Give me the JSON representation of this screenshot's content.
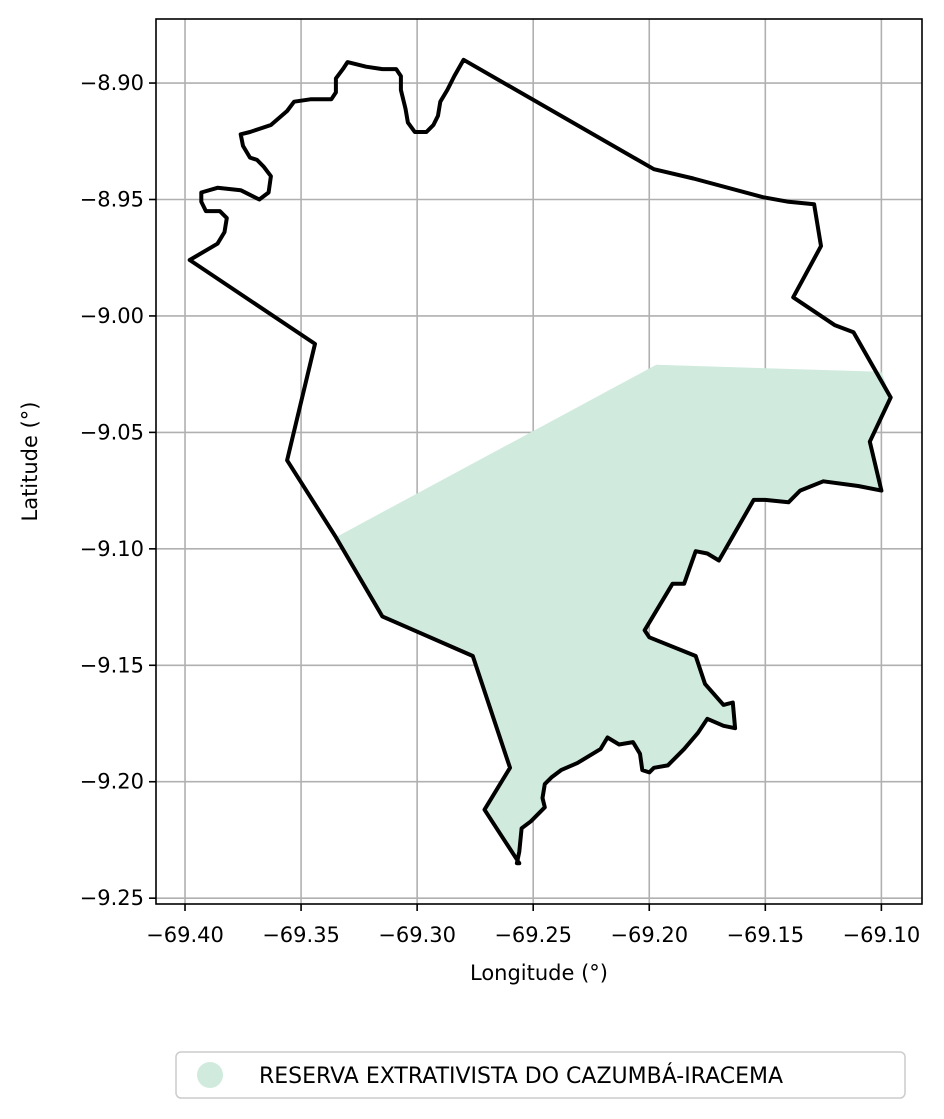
{
  "chart_data": {
    "type": "map",
    "xlabel": "Longitude (°)",
    "ylabel": "Latitude (°)",
    "xlim": [
      -69.4125,
      -69.0825
    ],
    "ylim": [
      -9.2525,
      -8.8725
    ],
    "x_ticks": [
      {
        "value": -69.4,
        "label": "−69.40"
      },
      {
        "value": -69.35,
        "label": "−69.35"
      },
      {
        "value": -69.3,
        "label": "−69.30"
      },
      {
        "value": -69.25,
        "label": "−69.25"
      },
      {
        "value": -69.2,
        "label": "−69.20"
      },
      {
        "value": -69.15,
        "label": "−69.15"
      },
      {
        "value": -69.1,
        "label": "−69.10"
      }
    ],
    "y_ticks": [
      {
        "value": -8.9,
        "label": "−8.90"
      },
      {
        "value": -8.95,
        "label": "−8.95"
      },
      {
        "value": -9.0,
        "label": "−9.00"
      },
      {
        "value": -9.05,
        "label": "−9.05"
      },
      {
        "value": -9.1,
        "label": "−9.10"
      },
      {
        "value": -9.15,
        "label": "−9.15"
      },
      {
        "value": -9.2,
        "label": "−9.20"
      },
      {
        "value": -9.25,
        "label": "−9.25"
      }
    ],
    "grid": true,
    "legend": {
      "placement": "bottom-center",
      "entries": [
        {
          "label": "RESERVA EXTRATIVISTA DO CAZUMBÁ-IRACEMA",
          "color": "#d0ebde",
          "marker": "circle"
        }
      ]
    },
    "fill_polygon": {
      "name": "RESERVA EXTRATIVISTA DO CAZUMBÁ-IRACEMA",
      "color": "#d0ebde",
      "coords": [
        [
          -69.335,
          -9.095
        ],
        [
          -69.197,
          -9.021
        ],
        [
          -69.1,
          -9.024
        ],
        [
          -69.096,
          -9.035
        ],
        [
          -69.105,
          -9.054
        ],
        [
          -69.1,
          -9.075
        ],
        [
          -69.11,
          -9.073
        ],
        [
          -69.125,
          -9.071
        ],
        [
          -69.135,
          -9.075
        ],
        [
          -69.14,
          -9.08
        ],
        [
          -69.15,
          -9.079
        ],
        [
          -69.155,
          -9.079
        ],
        [
          -69.17,
          -9.105
        ],
        [
          -69.175,
          -9.102
        ],
        [
          -69.18,
          -9.101
        ],
        [
          -69.185,
          -9.115
        ],
        [
          -69.19,
          -9.115
        ],
        [
          -69.202,
          -9.135
        ],
        [
          -69.2,
          -9.138
        ],
        [
          -69.18,
          -9.146
        ],
        [
          -69.176,
          -9.158
        ],
        [
          -69.168,
          -9.167
        ],
        [
          -69.164,
          -9.166
        ],
        [
          -69.163,
          -9.177
        ],
        [
          -69.168,
          -9.176
        ],
        [
          -69.175,
          -9.173
        ],
        [
          -69.179,
          -9.179
        ],
        [
          -69.185,
          -9.186
        ],
        [
          -69.192,
          -9.193
        ],
        [
          -69.198,
          -9.194
        ],
        [
          -69.2,
          -9.196
        ],
        [
          -69.203,
          -9.195
        ],
        [
          -69.204,
          -9.188
        ],
        [
          -69.207,
          -9.183
        ],
        [
          -69.213,
          -9.184
        ],
        [
          -69.218,
          -9.181
        ],
        [
          -69.221,
          -9.186
        ],
        [
          -69.231,
          -9.192
        ],
        [
          -69.238,
          -9.195
        ],
        [
          -69.242,
          -9.198
        ],
        [
          -69.245,
          -9.201
        ],
        [
          -69.246,
          -9.207
        ],
        [
          -69.245,
          -9.211
        ],
        [
          -69.251,
          -9.217
        ],
        [
          -69.255,
          -9.22
        ],
        [
          -69.256,
          -9.23
        ],
        [
          -69.257,
          -9.235
        ],
        [
          -69.256,
          -9.235
        ],
        [
          -69.271,
          -9.212
        ],
        [
          -69.26,
          -9.194
        ],
        [
          -69.276,
          -9.146
        ],
        [
          -69.315,
          -9.129
        ]
      ]
    },
    "boundary": {
      "color": "#000000",
      "coords": [
        [
          -69.398,
          -8.976
        ],
        [
          -69.386,
          -8.969
        ],
        [
          -69.383,
          -8.964
        ],
        [
          -69.382,
          -8.958
        ],
        [
          -69.385,
          -8.955
        ],
        [
          -69.391,
          -8.955
        ],
        [
          -69.393,
          -8.951
        ],
        [
          -69.393,
          -8.947
        ],
        [
          -69.386,
          -8.945
        ],
        [
          -69.376,
          -8.946
        ],
        [
          -69.368,
          -8.95
        ],
        [
          -69.364,
          -8.947
        ],
        [
          -69.363,
          -8.94
        ],
        [
          -69.366,
          -8.936
        ],
        [
          -69.369,
          -8.933
        ],
        [
          -69.372,
          -8.932
        ],
        [
          -69.375,
          -8.927
        ],
        [
          -69.376,
          -8.922
        ],
        [
          -69.372,
          -8.921
        ],
        [
          -69.363,
          -8.918
        ],
        [
          -69.356,
          -8.912
        ],
        [
          -69.353,
          -8.908
        ],
        [
          -69.346,
          -8.907
        ],
        [
          -69.337,
          -8.907
        ],
        [
          -69.335,
          -8.904
        ],
        [
          -69.335,
          -8.898
        ],
        [
          -69.332,
          -8.894
        ],
        [
          -69.33,
          -8.891
        ],
        [
          -69.322,
          -8.893
        ],
        [
          -69.315,
          -8.894
        ],
        [
          -69.309,
          -8.894
        ],
        [
          -69.307,
          -8.897
        ],
        [
          -69.307,
          -8.903
        ],
        [
          -69.305,
          -8.911
        ],
        [
          -69.304,
          -8.917
        ],
        [
          -69.301,
          -8.921
        ],
        [
          -69.296,
          -8.921
        ],
        [
          -69.293,
          -8.918
        ],
        [
          -69.291,
          -8.914
        ],
        [
          -69.29,
          -8.908
        ],
        [
          -69.287,
          -8.903
        ],
        [
          -69.284,
          -8.897
        ],
        [
          -69.28,
          -8.89
        ],
        [
          -69.198,
          -8.937
        ],
        [
          -69.181,
          -8.941
        ],
        [
          -69.151,
          -8.949
        ],
        [
          -69.14,
          -8.951
        ],
        [
          -69.129,
          -8.952
        ],
        [
          -69.126,
          -8.97
        ],
        [
          -69.138,
          -8.992
        ],
        [
          -69.12,
          -9.004
        ],
        [
          -69.112,
          -9.007
        ],
        [
          -69.096,
          -9.035
        ],
        [
          -69.105,
          -9.054
        ],
        [
          -69.1,
          -9.075
        ],
        [
          -69.11,
          -9.073
        ],
        [
          -69.125,
          -9.071
        ],
        [
          -69.135,
          -9.075
        ],
        [
          -69.14,
          -9.08
        ],
        [
          -69.15,
          -9.079
        ],
        [
          -69.155,
          -9.079
        ],
        [
          -69.17,
          -9.105
        ],
        [
          -69.175,
          -9.102
        ],
        [
          -69.18,
          -9.101
        ],
        [
          -69.185,
          -9.115
        ],
        [
          -69.19,
          -9.115
        ],
        [
          -69.202,
          -9.135
        ],
        [
          -69.2,
          -9.138
        ],
        [
          -69.18,
          -9.146
        ],
        [
          -69.176,
          -9.158
        ],
        [
          -69.168,
          -9.167
        ],
        [
          -69.164,
          -9.166
        ],
        [
          -69.163,
          -9.177
        ],
        [
          -69.168,
          -9.176
        ],
        [
          -69.175,
          -9.173
        ],
        [
          -69.179,
          -9.179
        ],
        [
          -69.185,
          -9.186
        ],
        [
          -69.192,
          -9.193
        ],
        [
          -69.198,
          -9.194
        ],
        [
          -69.2,
          -9.196
        ],
        [
          -69.203,
          -9.195
        ],
        [
          -69.204,
          -9.188
        ],
        [
          -69.207,
          -9.183
        ],
        [
          -69.213,
          -9.184
        ],
        [
          -69.218,
          -9.181
        ],
        [
          -69.221,
          -9.186
        ],
        [
          -69.231,
          -9.192
        ],
        [
          -69.238,
          -9.195
        ],
        [
          -69.242,
          -9.198
        ],
        [
          -69.245,
          -9.201
        ],
        [
          -69.246,
          -9.207
        ],
        [
          -69.245,
          -9.211
        ],
        [
          -69.251,
          -9.217
        ],
        [
          -69.255,
          -9.22
        ],
        [
          -69.256,
          -9.23
        ],
        [
          -69.257,
          -9.235
        ],
        [
          -69.256,
          -9.235
        ],
        [
          -69.271,
          -9.212
        ],
        [
          -69.26,
          -9.194
        ],
        [
          -69.276,
          -9.146
        ],
        [
          -69.315,
          -9.129
        ],
        [
          -69.335,
          -9.095
        ],
        [
          -69.356,
          -9.062
        ],
        [
          -69.344,
          -9.012
        ],
        [
          -69.398,
          -8.976
        ]
      ]
    }
  }
}
